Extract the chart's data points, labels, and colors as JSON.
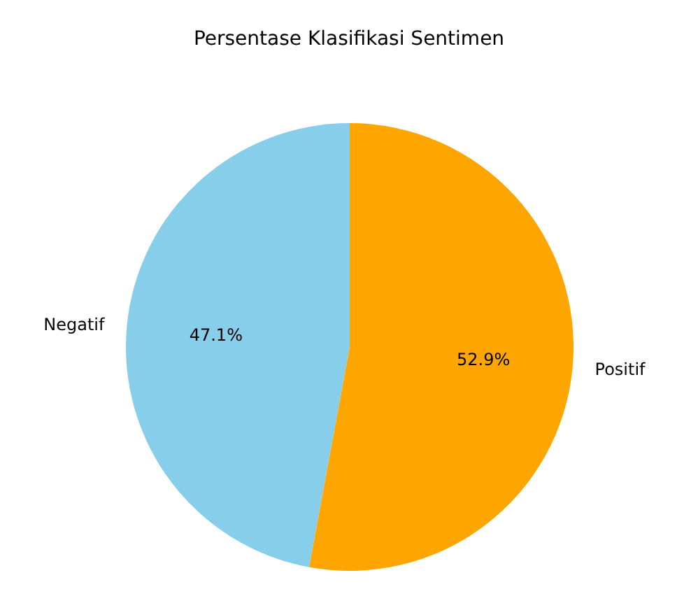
{
  "chart_data": {
    "type": "pie",
    "title": "Persentase Klasifikasi Sentimen",
    "categories": [
      "Negatif",
      "Positif"
    ],
    "values": [
      47.1,
      52.9
    ],
    "colors": [
      "#87ceeb",
      "#ffa500"
    ],
    "value_labels": [
      "47.1%",
      "52.9%"
    ]
  }
}
